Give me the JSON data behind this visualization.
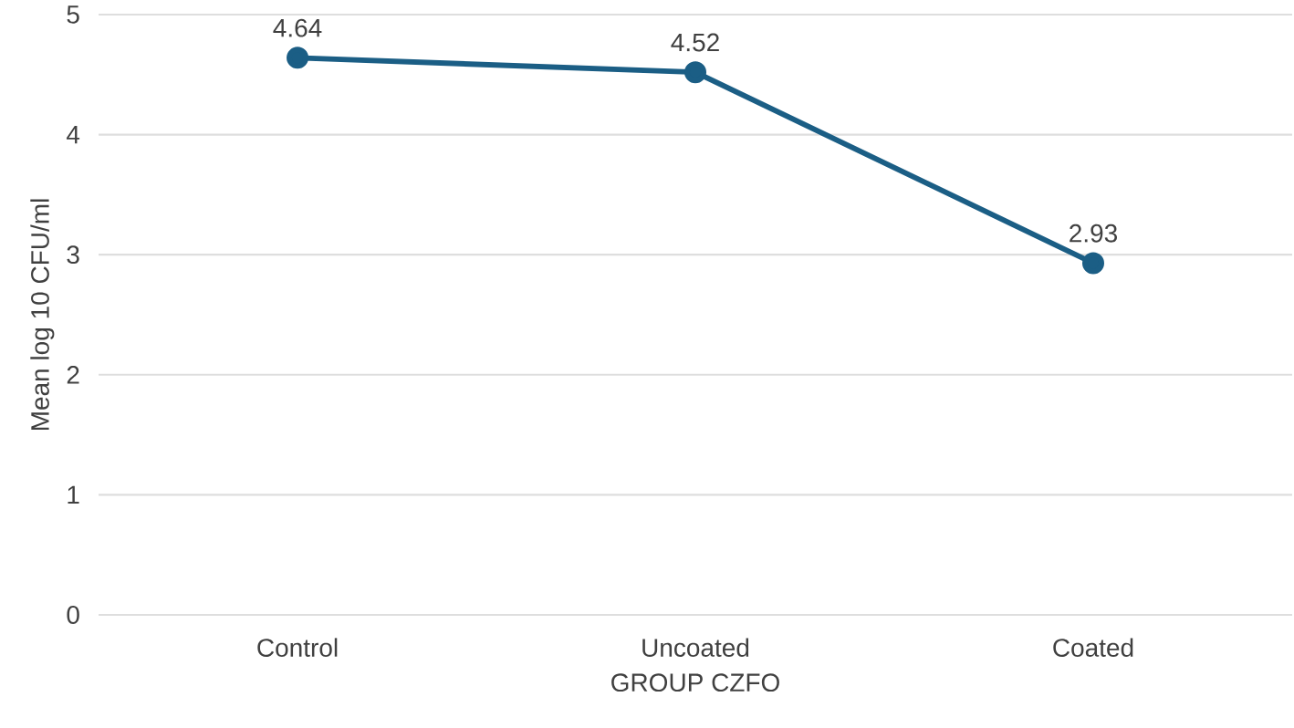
{
  "chart_data": {
    "type": "line",
    "xlabel": "GROUP CZFO",
    "ylabel": "Mean log 10 CFU/ml",
    "categories": [
      "Control",
      "Uncoated",
      "Coated"
    ],
    "values": [
      4.64,
      4.52,
      2.93
    ],
    "value_labels": [
      "4.64",
      "4.52",
      "2.93"
    ],
    "color": "#1b5e85",
    "ylim": [
      0,
      5
    ],
    "yticks": [
      0,
      1,
      2,
      3,
      4,
      5
    ],
    "grid": "y",
    "marker": "circle",
    "line_style": "solid"
  }
}
